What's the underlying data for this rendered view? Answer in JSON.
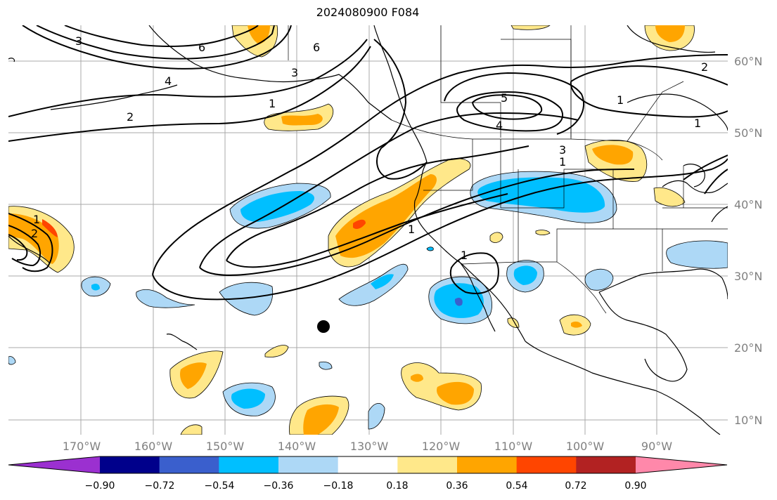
{
  "title": "2024080900 F084",
  "longitude_labels": [
    "170°W",
    "160°W",
    "150°W",
    "140°W",
    "130°W",
    "120°W",
    "110°W",
    "100°W",
    "90°W"
  ],
  "latitude_labels": [
    "60°N",
    "50°N",
    "40°N",
    "30°N",
    "20°N",
    "10°N"
  ],
  "contour_labels": [
    "6",
    "6",
    "5",
    "4",
    "3",
    "3",
    "2",
    "2",
    "2",
    "1",
    "1",
    "1",
    "1",
    "1",
    "1",
    "1",
    "3",
    "4"
  ],
  "colorbar": {
    "tick_labels": [
      "−0.90",
      "−0.72",
      "−0.54",
      "−0.36",
      "−0.18",
      "0.18",
      "0.36",
      "0.54",
      "0.72",
      "0.90"
    ],
    "colors": [
      "#9b30d0",
      "#00008b",
      "#3a5fcd",
      "#00bfff",
      "#add8f6",
      "#ffffff",
      "#ffe88a",
      "#ffa500",
      "#ff4500",
      "#b22222",
      "#ff88aa"
    ]
  },
  "marker": "storm-position-dot",
  "colors": {
    "positive_light": "#ffe88a",
    "positive_mid": "#ffa500",
    "positive_strong": "#ff4500",
    "negative_light": "#add8f6",
    "negative_mid": "#00bfff",
    "negative_strong": "#3a5fcd"
  }
}
